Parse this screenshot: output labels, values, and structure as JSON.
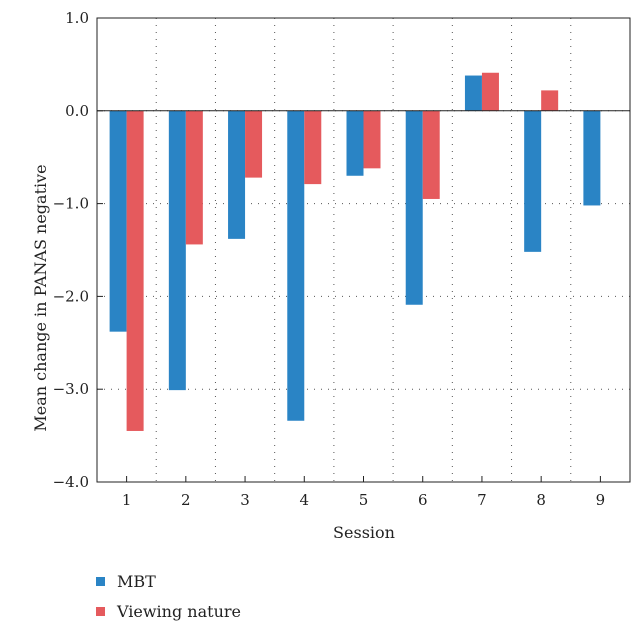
{
  "chart_data": {
    "type": "bar",
    "xlabel": "Session",
    "ylabel": "Mean change in PANAS negative",
    "ylim": [
      -4.0,
      1.0
    ],
    "yticks": [
      "1.0",
      "0.0",
      "−1.0",
      "−2.0",
      "−3.0",
      "−4.0"
    ],
    "ytick_values": [
      1.0,
      0.0,
      -1.0,
      -2.0,
      -3.0,
      -4.0
    ],
    "categories": [
      "1",
      "2",
      "3",
      "4",
      "5",
      "6",
      "7",
      "8",
      "9"
    ],
    "grid": "dotted",
    "legend_position": "bottom-left",
    "series": [
      {
        "name": "MBT",
        "color": "#2a84c5",
        "values": [
          -2.38,
          -3.01,
          -1.38,
          -3.34,
          -0.7,
          -2.09,
          0.38,
          -1.52,
          -1.02
        ]
      },
      {
        "name": "Viewing nature",
        "color": "#e55a5d",
        "values": [
          -3.45,
          -1.44,
          -0.72,
          -0.79,
          -0.62,
          -0.95,
          0.41,
          0.22,
          null
        ]
      }
    ]
  }
}
